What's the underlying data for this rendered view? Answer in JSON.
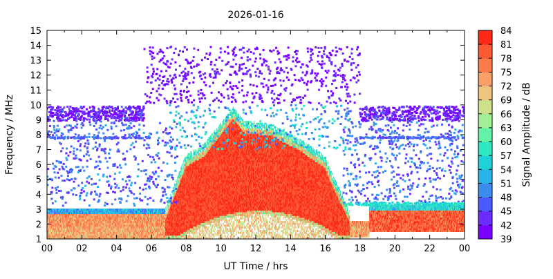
{
  "chart_data": {
    "type": "heatmap",
    "title": "2026-01-16",
    "xlabel": "UT Time / hrs",
    "ylabel": "Frequency / MHz",
    "colorbar_label": "Signal Amplitude / dB",
    "x_range": [
      0,
      24
    ],
    "y_range": [
      1,
      15
    ],
    "x_ticks": [
      "00",
      "02",
      "04",
      "06",
      "08",
      "10",
      "12",
      "14",
      "16",
      "18",
      "20",
      "22",
      "00"
    ],
    "y_ticks": [
      "1",
      "2",
      "3",
      "4",
      "5",
      "6",
      "7",
      "8",
      "9",
      "10",
      "11",
      "12",
      "13",
      "14",
      "15"
    ],
    "color_scale": {
      "min": 39,
      "max": 84,
      "ticks": [
        "39",
        "42",
        "45",
        "48",
        "51",
        "54",
        "57",
        "60",
        "63",
        "66",
        "69",
        "72",
        "75",
        "78",
        "81",
        "84"
      ],
      "colors": [
        "#7a00ff",
        "#6a2cff",
        "#4a5cff",
        "#3c8cf0",
        "#28b4e8",
        "#1ed2d8",
        "#2ee8c0",
        "#64f2a8",
        "#a2f096",
        "#cfe08a",
        "#eec47e",
        "#f8a068",
        "#fa7c4c",
        "#fb5a34",
        "#fd2a18"
      ]
    },
    "regions": [
      {
        "name": "sparse-background",
        "x": [
          0,
          24
        ],
        "y": [
          1,
          10
        ],
        "level": "42-51 dB"
      },
      {
        "name": "night-high-band",
        "x": [
          5.5,
          18
        ],
        "y": [
          10,
          14
        ],
        "level": "39-45 dB"
      },
      {
        "name": "daytime-enhancement",
        "x": [
          7,
          17.5
        ],
        "y": [
          2.5,
          9.7
        ],
        "level": "78-84 dB"
      },
      {
        "name": "low-freq-night-band-a",
        "x": [
          0,
          7
        ],
        "y": [
          1,
          3
        ],
        "level": "72-81 dB"
      },
      {
        "name": "low-freq-night-band-b",
        "x": [
          19,
          24
        ],
        "y": [
          1.5,
          3.3
        ],
        "level": "75-84 dB"
      }
    ],
    "grid": false,
    "legend": "colorbar-right"
  }
}
